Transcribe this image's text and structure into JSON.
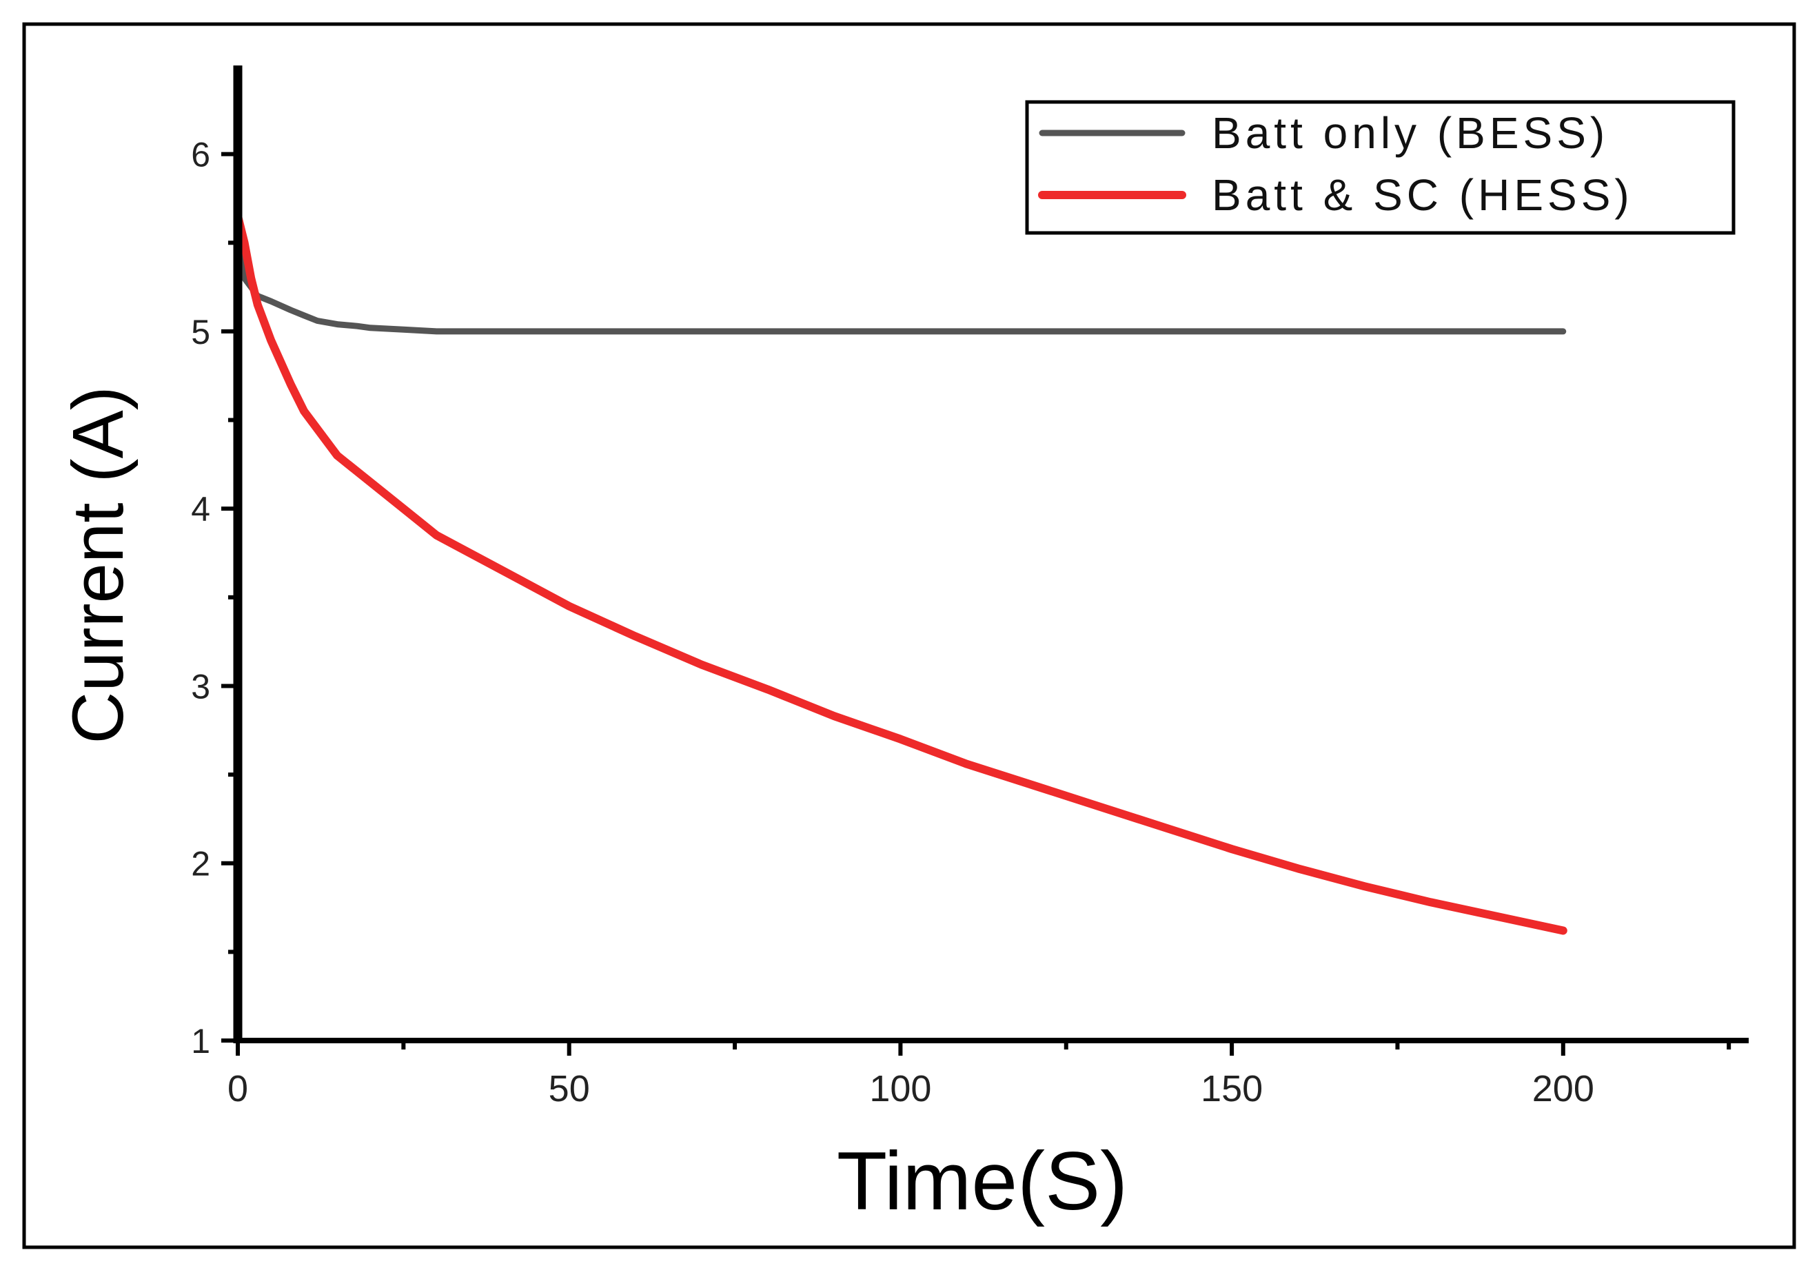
{
  "chart_data": {
    "type": "line",
    "title": "",
    "xlabel": "Time(S)",
    "ylabel": "Current (A)",
    "xlim": [
      0,
      228
    ],
    "ylim": [
      1,
      6.5
    ],
    "xticks": [
      0,
      50,
      100,
      150,
      200
    ],
    "yticks": [
      1,
      2,
      3,
      4,
      5,
      6
    ],
    "xtick_labels": [
      "0",
      "50",
      "100",
      "150",
      "200"
    ],
    "ytick_labels": [
      "1",
      "2",
      "3",
      "4",
      "5",
      "6"
    ],
    "grid": false,
    "legend_position": "top-right",
    "series": [
      {
        "name": "Batt only (BESS)",
        "color": "#555555",
        "x": [
          0,
          1,
          2,
          3,
          5,
          8,
          10,
          12,
          15,
          18,
          20,
          25,
          30,
          50,
          100,
          150,
          200
        ],
        "y": [
          5.6,
          5.3,
          5.25,
          5.2,
          5.17,
          5.12,
          5.09,
          5.06,
          5.04,
          5.03,
          5.02,
          5.01,
          5.0,
          5.0,
          5.0,
          5.0,
          5.0
        ]
      },
      {
        "name": "Batt & SC (HESS)",
        "color": "#ee2a2a",
        "x": [
          0,
          1,
          2,
          3,
          5,
          8,
          10,
          15,
          20,
          25,
          30,
          40,
          50,
          60,
          70,
          80,
          90,
          100,
          110,
          120,
          130,
          140,
          150,
          160,
          170,
          180,
          190,
          200
        ],
        "y": [
          5.65,
          5.5,
          5.3,
          5.15,
          4.95,
          4.7,
          4.55,
          4.3,
          4.15,
          4.0,
          3.85,
          3.65,
          3.45,
          3.28,
          3.12,
          2.98,
          2.83,
          2.7,
          2.56,
          2.44,
          2.32,
          2.2,
          2.08,
          1.97,
          1.87,
          1.78,
          1.7,
          1.62
        ]
      }
    ]
  }
}
